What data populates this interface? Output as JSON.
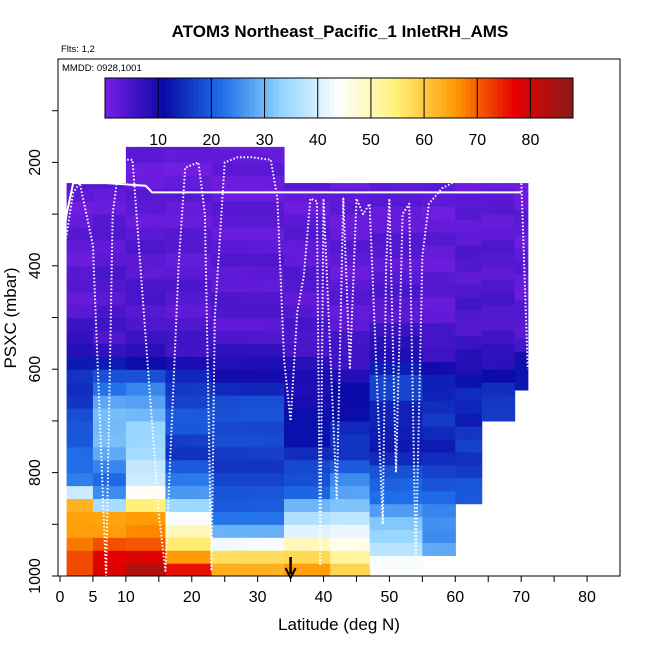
{
  "chart_data": {
    "type": "heatmap",
    "title": "ATOM3 Northeast_Pacific_1 InletRH_AMS",
    "annotations": {
      "flights": "Flts: 1,2",
      "dates": "MMDD: 0928,1001"
    },
    "xlabel": "Latitude (deg N)",
    "ylabel": "PSXC (mbar)",
    "xlim": [
      0,
      85
    ],
    "ylim": [
      1000,
      0
    ],
    "x_ticks": [
      0,
      5,
      10,
      20,
      30,
      40,
      50,
      60,
      70,
      80
    ],
    "y_ticks": [
      200,
      400,
      600,
      800,
      1000
    ],
    "colorbar": {
      "min": 0,
      "max": 88,
      "ticks": [
        10,
        20,
        30,
        40,
        50,
        60,
        70,
        80
      ],
      "colors": [
        "#7b1fe6",
        "#0a0aa8",
        "#1f6fe8",
        "#8fd3ff",
        "#ffffff",
        "#fff176",
        "#ff9800",
        "#e60000",
        "#8b1a1a"
      ]
    },
    "marker": {
      "x": 35,
      "label": "down-arrow"
    },
    "bin_size": {
      "lat": 2,
      "pres": 25
    },
    "columns": [
      {
        "lat": [
          1,
          5
        ],
        "top": 240,
        "bottom": 1000,
        "profile": [
          [
            1000,
            72
          ],
          [
            950,
            70
          ],
          [
            900,
            65
          ],
          [
            860,
            62
          ],
          [
            825,
            28
          ],
          [
            800,
            20
          ],
          [
            760,
            22
          ],
          [
            700,
            18
          ],
          [
            650,
            16
          ],
          [
            600,
            14
          ],
          [
            550,
            8
          ],
          [
            500,
            4
          ],
          [
            460,
            3
          ],
          [
            200,
            2
          ]
        ]
      },
      {
        "lat": [
          5,
          10
        ],
        "top": 240,
        "bottom": 1000,
        "profile": [
          [
            1000,
            80
          ],
          [
            960,
            76
          ],
          [
            920,
            67
          ],
          [
            880,
            64
          ],
          [
            860,
            30
          ],
          [
            820,
            22
          ],
          [
            780,
            24
          ],
          [
            740,
            32
          ],
          [
            700,
            30
          ],
          [
            660,
            28
          ],
          [
            620,
            20
          ],
          [
            580,
            10
          ],
          [
            540,
            5
          ],
          [
            200,
            2
          ]
        ]
      },
      {
        "lat": [
          10,
          16
        ],
        "top": 170,
        "bottom": 1000,
        "profile": [
          [
            1000,
            84
          ],
          [
            960,
            78
          ],
          [
            920,
            67
          ],
          [
            880,
            64
          ],
          [
            850,
            50
          ],
          [
            820,
            38
          ],
          [
            780,
            38
          ],
          [
            740,
            34
          ],
          [
            700,
            32
          ],
          [
            660,
            28
          ],
          [
            620,
            20
          ],
          [
            580,
            10
          ],
          [
            540,
            5
          ],
          [
            200,
            2
          ]
        ]
      },
      {
        "lat": [
          16,
          23
        ],
        "top": 170,
        "bottom": 1000,
        "profile": [
          [
            1000,
            80
          ],
          [
            950,
            60
          ],
          [
            920,
            52
          ],
          [
            880,
            40
          ],
          [
            840,
            28
          ],
          [
            800,
            20
          ],
          [
            760,
            16
          ],
          [
            720,
            18
          ],
          [
            680,
            20
          ],
          [
            640,
            16
          ],
          [
            600,
            12
          ],
          [
            560,
            6
          ],
          [
            520,
            4
          ],
          [
            200,
            2
          ]
        ]
      },
      {
        "lat": [
          23,
          34
        ],
        "top": 170,
        "bottom": 1000,
        "profile": [
          [
            1000,
            66
          ],
          [
            960,
            58
          ],
          [
            920,
            30
          ],
          [
            880,
            22
          ],
          [
            840,
            18
          ],
          [
            800,
            17
          ],
          [
            760,
            16
          ],
          [
            720,
            18
          ],
          [
            680,
            20
          ],
          [
            640,
            14
          ],
          [
            600,
            10
          ],
          [
            560,
            6
          ],
          [
            520,
            4
          ],
          [
            200,
            2
          ]
        ]
      },
      {
        "lat": [
          34,
          41
        ],
        "top": 240,
        "bottom": 1000,
        "profile": [
          [
            1000,
            70
          ],
          [
            960,
            56
          ],
          [
            920,
            44
          ],
          [
            880,
            34
          ],
          [
            840,
            22
          ],
          [
            800,
            18
          ],
          [
            760,
            14
          ],
          [
            720,
            12
          ],
          [
            680,
            10
          ],
          [
            640,
            10
          ],
          [
            600,
            8
          ],
          [
            560,
            6
          ],
          [
            520,
            4
          ],
          [
            200,
            2
          ]
        ]
      },
      {
        "lat": [
          41,
          47
        ],
        "top": 240,
        "bottom": 1000,
        "profile": [
          [
            1000,
            60
          ],
          [
            960,
            52
          ],
          [
            920,
            42
          ],
          [
            880,
            36
          ],
          [
            840,
            28
          ],
          [
            800,
            22
          ],
          [
            760,
            16
          ],
          [
            720,
            14
          ],
          [
            680,
            12
          ],
          [
            640,
            10
          ],
          [
            600,
            8
          ],
          [
            560,
            5
          ],
          [
            500,
            3
          ],
          [
            200,
            2
          ]
        ]
      },
      {
        "lat": [
          47,
          55
        ],
        "top": 240,
        "bottom": 985,
        "profile": [
          [
            1000,
            48
          ],
          [
            960,
            40
          ],
          [
            920,
            34
          ],
          [
            880,
            28
          ],
          [
            840,
            22
          ],
          [
            800,
            18
          ],
          [
            760,
            14
          ],
          [
            720,
            12
          ],
          [
            680,
            14
          ],
          [
            640,
            18
          ],
          [
            600,
            14
          ],
          [
            560,
            8
          ],
          [
            500,
            4
          ],
          [
            200,
            2
          ]
        ]
      },
      {
        "lat": [
          55,
          60
        ],
        "top": 240,
        "bottom": 960,
        "profile": [
          [
            960,
            30
          ],
          [
            920,
            26
          ],
          [
            880,
            24
          ],
          [
            840,
            22
          ],
          [
            800,
            16
          ],
          [
            760,
            14
          ],
          [
            720,
            14
          ],
          [
            680,
            16
          ],
          [
            640,
            14
          ],
          [
            600,
            10
          ],
          [
            560,
            6
          ],
          [
            500,
            3
          ],
          [
            200,
            2
          ]
        ]
      },
      {
        "lat": [
          60,
          64
        ],
        "top": 240,
        "bottom": 860,
        "profile": [
          [
            860,
            20
          ],
          [
            820,
            18
          ],
          [
            780,
            16
          ],
          [
            740,
            16
          ],
          [
            700,
            14
          ],
          [
            660,
            14
          ],
          [
            620,
            12
          ],
          [
            580,
            8
          ],
          [
            540,
            5
          ],
          [
            200,
            2
          ]
        ]
      },
      {
        "lat": [
          64,
          69
        ],
        "top": 240,
        "bottom": 700,
        "profile": [
          [
            700,
            18
          ],
          [
            660,
            16
          ],
          [
            620,
            12
          ],
          [
            580,
            8
          ],
          [
            540,
            5
          ],
          [
            200,
            2
          ]
        ]
      },
      {
        "lat": [
          69,
          71
        ],
        "top": 240,
        "bottom": 640,
        "profile": [
          [
            640,
            14
          ],
          [
            600,
            12
          ],
          [
            560,
            6
          ],
          [
            500,
            3
          ],
          [
            200,
            2
          ]
        ]
      }
    ],
    "flight_track_1": [
      [
        0,
        380
      ],
      [
        1,
        300
      ],
      [
        2,
        240
      ],
      [
        7,
        240
      ],
      [
        13,
        245
      ],
      [
        14,
        258
      ],
      [
        33,
        258
      ],
      [
        48,
        258
      ],
      [
        60,
        258
      ],
      [
        70,
        258
      ]
    ],
    "flight_track_2": [
      [
        0,
        400
      ],
      [
        1,
        340
      ],
      [
        2,
        258
      ],
      [
        3,
        240
      ],
      [
        5,
        360
      ],
      [
        7,
        1000
      ],
      [
        8,
        300
      ],
      [
        9,
        200
      ],
      [
        10,
        195
      ],
      [
        11,
        195
      ],
      [
        15,
        880
      ],
      [
        16,
        990
      ],
      [
        18,
        400
      ],
      [
        19,
        210
      ],
      [
        21,
        200
      ],
      [
        22,
        300
      ],
      [
        23,
        990
      ],
      [
        23.5,
        500
      ],
      [
        25,
        200
      ],
      [
        27,
        190
      ],
      [
        29,
        190
      ],
      [
        32,
        195
      ],
      [
        33,
        270
      ],
      [
        34,
        580
      ],
      [
        35,
        700
      ],
      [
        36,
        490
      ],
      [
        37,
        420
      ],
      [
        38,
        270
      ],
      [
        39,
        275
      ],
      [
        39.5,
        980
      ],
      [
        40,
        270
      ],
      [
        42,
        850
      ],
      [
        43,
        270
      ],
      [
        44,
        600
      ],
      [
        45,
        270
      ],
      [
        46,
        300
      ],
      [
        47,
        280
      ],
      [
        49,
        900
      ],
      [
        49.5,
        400
      ],
      [
        50,
        270
      ],
      [
        51,
        800
      ],
      [
        52,
        300
      ],
      [
        53,
        280
      ],
      [
        54,
        970
      ],
      [
        55,
        380
      ],
      [
        56,
        280
      ],
      [
        58,
        250
      ],
      [
        61,
        230
      ],
      [
        70,
        230
      ],
      [
        71,
        600
      ]
    ]
  }
}
